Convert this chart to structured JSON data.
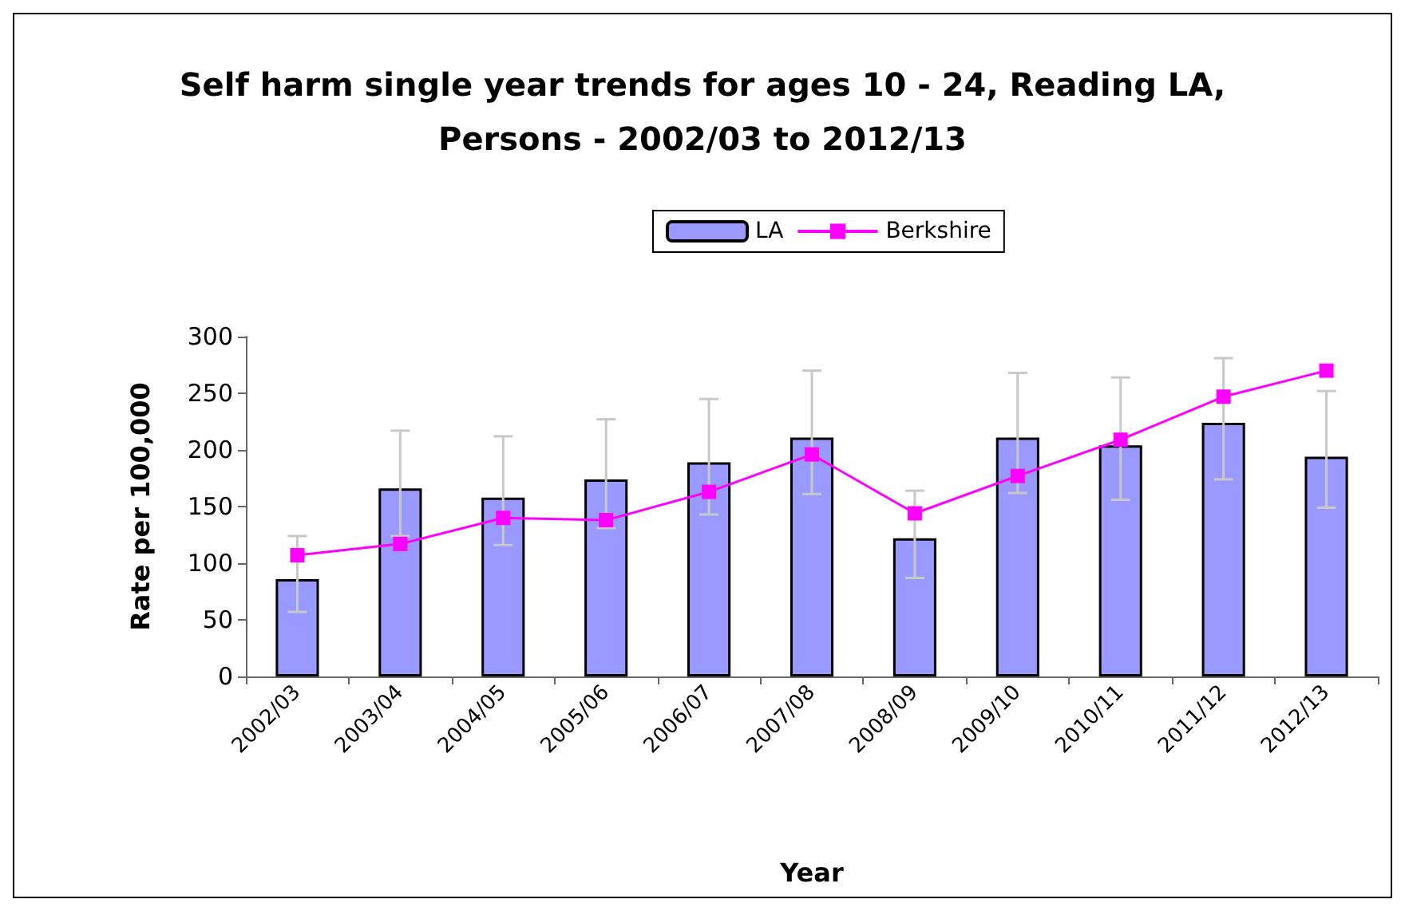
{
  "chart_data": {
    "type": "bar",
    "title": "Self harm single year trends for ages 10 - 24, Reading LA,\nPersons - 2002/03 to 2012/13",
    "xlabel": "Year",
    "ylabel": "Rate per 100,000",
    "categories": [
      "2002/03",
      "2003/04",
      "2004/05",
      "2005/06",
      "2006/07",
      "2007/08",
      "2008/09",
      "2009/10",
      "2010/11",
      "2011/12",
      "2012/13"
    ],
    "series": [
      {
        "name": "LA",
        "color": "#9999ff",
        "values": [
          86,
          166,
          158,
          174,
          189,
          211,
          122,
          211,
          204,
          224,
          194
        ],
        "errors": [
          [
            57,
            124
          ],
          [
            124,
            217
          ],
          [
            116,
            212
          ],
          [
            131,
            227
          ],
          [
            143,
            245
          ],
          [
            161,
            270
          ],
          [
            87,
            164
          ],
          [
            162,
            268
          ],
          [
            156,
            264
          ],
          [
            174,
            281
          ],
          [
            149,
            252
          ]
        ]
      },
      {
        "name": "Berkshire",
        "type": "line",
        "color": "#ff00ff",
        "marker": "square",
        "values": [
          107,
          117,
          140,
          138,
          163,
          196,
          144,
          177,
          209,
          247,
          270
        ]
      }
    ],
    "ylim": [
      0,
      300
    ],
    "yticks": [
      0,
      50,
      100,
      150,
      200,
      250,
      300
    ],
    "grid": false,
    "legend": "top"
  }
}
